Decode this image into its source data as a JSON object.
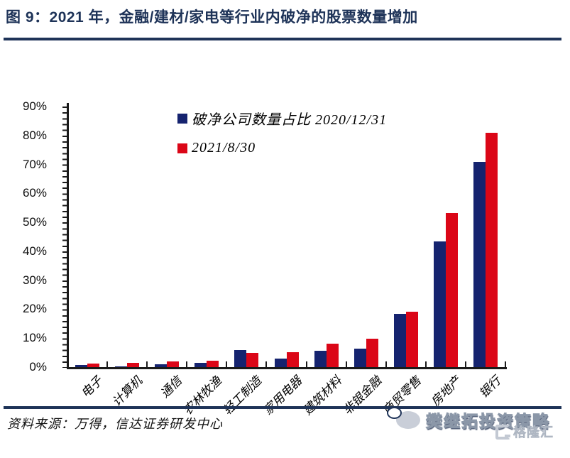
{
  "figure": {
    "title": "图 9：2021 年，金融/建材/家电等行业内破净的股票数量增加",
    "source": "资料来源：万得，信达证券研发中心"
  },
  "watermark": {
    "strategy": "樊继拓投资策略",
    "gelonghui": "格隆汇"
  },
  "colors": {
    "bar_navy": "#15236F",
    "bar_red": "#DB0617",
    "title_navy": "#1E3358",
    "axis_black": "#1A1A1A",
    "watermark_gray": "#C3C9D3"
  },
  "chart_data": {
    "type": "bar",
    "title": "",
    "xlabel": "",
    "ylabel": "",
    "ylim": [
      0,
      90
    ],
    "grid": false,
    "legend_position": "top-center",
    "ytick_labels": [
      "0%",
      "10%",
      "20%",
      "30%",
      "40%",
      "50%",
      "60%",
      "70%",
      "80%",
      "90%"
    ],
    "categories": [
      "电子",
      "计算机",
      "通信",
      "农林牧渔",
      "轻工制造",
      "家用电器",
      "建筑材料",
      "非银金融",
      "商贸零售",
      "房地产",
      "银行"
    ],
    "series": [
      {
        "name": "破净公司数量占比 2020/12/31",
        "color": "#15236F",
        "values": [
          0.8,
          0.3,
          1.0,
          1.4,
          6.0,
          2.9,
          5.6,
          6.3,
          18.5,
          43.5,
          70.8
        ]
      },
      {
        "name": "2021/8/30",
        "color": "#DB0617",
        "values": [
          1.2,
          1.4,
          2.0,
          2.1,
          4.8,
          5.2,
          8.0,
          9.7,
          19.2,
          53.3,
          81.0
        ]
      }
    ]
  }
}
